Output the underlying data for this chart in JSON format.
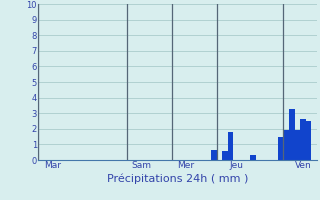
{
  "title": "",
  "xlabel": "Précipitations 24h ( mm )",
  "ylabel": "",
  "background_color": "#d8eeee",
  "bar_color": "#1144cc",
  "grid_color": "#aacccc",
  "axis_label_color": "#3344aa",
  "tick_label_color": "#3344aa",
  "spine_color": "#4477aa",
  "ylim": [
    0,
    10
  ],
  "yticks": [
    0,
    1,
    2,
    3,
    4,
    5,
    6,
    7,
    8,
    9,
    10
  ],
  "day_labels": [
    "Mar",
    "Sam",
    "Mer",
    "Jeu",
    "Ven"
  ],
  "day_tick_positions": [
    2,
    18,
    26,
    35,
    47
  ],
  "vline_positions": [
    0,
    16,
    24,
    32,
    44
  ],
  "num_bars": 50,
  "bar_values": [
    0,
    0,
    0,
    0,
    0,
    0,
    0,
    0,
    0,
    0,
    0,
    0,
    0,
    0,
    0,
    0,
    0,
    0,
    0,
    0,
    0,
    0,
    0,
    0,
    0,
    0,
    0,
    0,
    0,
    0,
    0,
    0.65,
    0,
    0.55,
    1.8,
    0,
    0,
    0,
    0.3,
    0,
    0,
    0,
    0,
    1.5,
    1.9,
    3.3,
    1.9,
    2.6,
    2.5,
    0
  ]
}
